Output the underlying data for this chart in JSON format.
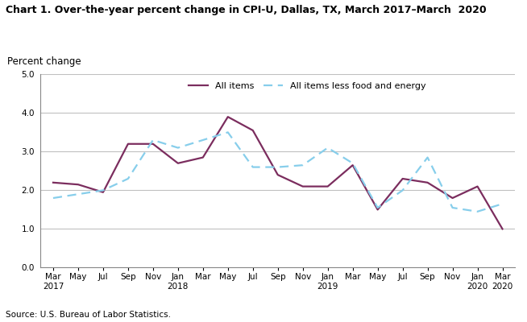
{
  "title": "Chart 1. Over-the-year percent change in CPI-U, Dallas, TX, March 2017–March  2020",
  "ylabel": "Percent change",
  "source": "Source: U.S. Bureau of Labor Statistics.",
  "ylim": [
    0.0,
    5.0
  ],
  "yticks": [
    0.0,
    1.0,
    2.0,
    3.0,
    4.0,
    5.0
  ],
  "x_labels": [
    "Mar\n2017",
    "May",
    "Jul",
    "Sep",
    "Nov",
    "Jan\n2018",
    "Mar",
    "May",
    "Jul",
    "Sep",
    "Nov",
    "Jan\n2019",
    "Mar",
    "May",
    "Jul",
    "Sep",
    "Nov",
    "Jan\n2020",
    "Mar\n2020"
  ],
  "all_items": [
    2.2,
    2.15,
    1.95,
    3.2,
    3.2,
    2.7,
    2.85,
    3.9,
    3.55,
    2.4,
    2.1,
    2.1,
    2.65,
    1.5,
    2.3,
    2.2,
    1.8,
    2.1,
    1.0
  ],
  "all_items_less": [
    1.8,
    1.9,
    2.0,
    2.3,
    3.3,
    3.1,
    3.3,
    3.5,
    2.6,
    2.6,
    2.65,
    3.1,
    2.7,
    1.55,
    2.0,
    2.85,
    1.55,
    1.45,
    1.65
  ],
  "all_items_color": "#7B2D5E",
  "all_items_less_color": "#87CEEB",
  "legend_all_items": "All items",
  "legend_all_items_less": "All items less food and energy",
  "background_color": "#ffffff",
  "grid_color": "#c0c0c0"
}
